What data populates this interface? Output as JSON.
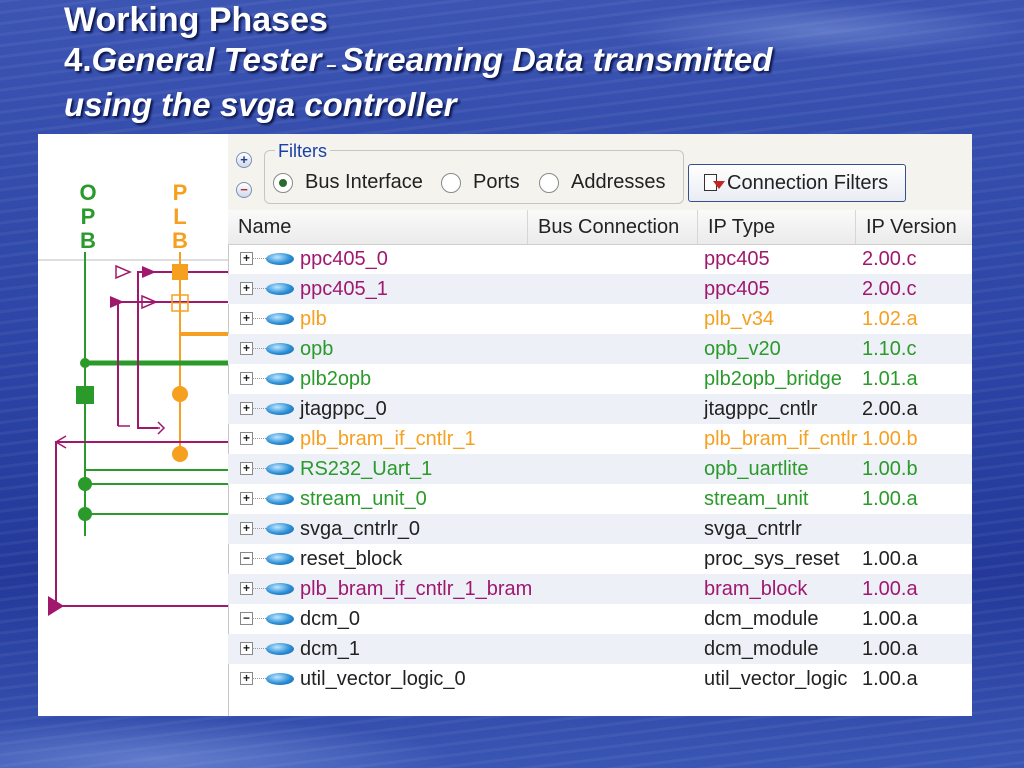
{
  "slide": {
    "title_line1": "Working Phases",
    "title_num": "4.",
    "title_part_a": "General Tester",
    "title_dash": " – ",
    "title_part_b": "Streaming Data transmitted",
    "title_line3": "using the svga controller"
  },
  "diagram": {
    "bus_labels": [
      {
        "letters": [
          "O",
          "P",
          "B"
        ],
        "color": "#2a9a2a"
      },
      {
        "letters": [
          "P",
          "L",
          "B"
        ],
        "color": "#f5a020"
      }
    ],
    "colors": {
      "opb": "#2a9a2a",
      "plb": "#f5a020",
      "dcr": "#a0186e"
    }
  },
  "filters": {
    "legend": "Filters",
    "options": [
      "Bus Interface",
      "Ports",
      "Addresses"
    ],
    "selected": "Bus Interface",
    "connection_filters_label": "Connection Filters"
  },
  "columns": [
    "Name",
    "Bus Connection",
    "IP Type",
    "IP Version"
  ],
  "rows": [
    {
      "expander": "+",
      "name": "ppc405_0",
      "ip_type": "ppc405",
      "ip_version": "2.00.c",
      "name_color": "#a0186e",
      "type_color": "#a0186e",
      "ver_color": "#a0186e"
    },
    {
      "expander": "+",
      "name": "ppc405_1",
      "ip_type": "ppc405",
      "ip_version": "2.00.c",
      "name_color": "#a0186e",
      "type_color": "#a0186e",
      "ver_color": "#a0186e"
    },
    {
      "expander": "+",
      "name": "plb",
      "ip_type": "plb_v34",
      "ip_version": "1.02.a",
      "name_color": "#f5a020",
      "type_color": "#f5a020",
      "ver_color": "#f5a020"
    },
    {
      "expander": "+",
      "name": "opb",
      "ip_type": "opb_v20",
      "ip_version": "1.10.c",
      "name_color": "#2a9a2a",
      "type_color": "#2a9a2a",
      "ver_color": "#2a9a2a"
    },
    {
      "expander": "+",
      "name": "plb2opb",
      "ip_type": "plb2opb_bridge",
      "ip_version": "1.01.a",
      "name_color": "#2a9a2a",
      "type_color": "#2a9a2a",
      "ver_color": "#2a9a2a"
    },
    {
      "expander": "+",
      "name": "jtagppc_0",
      "ip_type": "jtagppc_cntlr",
      "ip_version": "2.00.a",
      "name_color": "#222222",
      "type_color": "#222222",
      "ver_color": "#222222"
    },
    {
      "expander": "+",
      "name": "plb_bram_if_cntlr_1",
      "ip_type": "plb_bram_if_cntlr",
      "ip_version": "1.00.b",
      "name_color": "#f5a020",
      "type_color": "#f5a020",
      "ver_color": "#f5a020"
    },
    {
      "expander": "+",
      "name": "RS232_Uart_1",
      "ip_type": "opb_uartlite",
      "ip_version": "1.00.b",
      "name_color": "#2a9a2a",
      "type_color": "#2a9a2a",
      "ver_color": "#2a9a2a"
    },
    {
      "expander": "+",
      "name": "stream_unit_0",
      "ip_type": "stream_unit",
      "ip_version": "1.00.a",
      "name_color": "#2a9a2a",
      "type_color": "#2a9a2a",
      "ver_color": "#2a9a2a"
    },
    {
      "expander": "+",
      "name": "svga_cntrlr_0",
      "ip_type": "svga_cntrlr",
      "ip_version": "",
      "name_color": "#222222",
      "type_color": "#222222",
      "ver_color": "#222222"
    },
    {
      "expander": "−",
      "name": "reset_block",
      "ip_type": "proc_sys_reset",
      "ip_version": "1.00.a",
      "name_color": "#222222",
      "type_color": "#222222",
      "ver_color": "#222222"
    },
    {
      "expander": "+",
      "name": "plb_bram_if_cntlr_1_bram",
      "ip_type": "bram_block",
      "ip_version": "1.00.a",
      "name_color": "#a0186e",
      "type_color": "#a0186e",
      "ver_color": "#a0186e"
    },
    {
      "expander": "−",
      "name": "dcm_0",
      "ip_type": "dcm_module",
      "ip_version": "1.00.a",
      "name_color": "#222222",
      "type_color": "#222222",
      "ver_color": "#222222"
    },
    {
      "expander": "+",
      "name": "dcm_1",
      "ip_type": "dcm_module",
      "ip_version": "1.00.a",
      "name_color": "#222222",
      "type_color": "#222222",
      "ver_color": "#222222"
    },
    {
      "expander": "+",
      "name": "util_vector_logic_0",
      "ip_type": "util_vector_logic",
      "ip_version": "1.00.a",
      "name_color": "#222222",
      "type_color": "#222222",
      "ver_color": "#222222"
    }
  ]
}
